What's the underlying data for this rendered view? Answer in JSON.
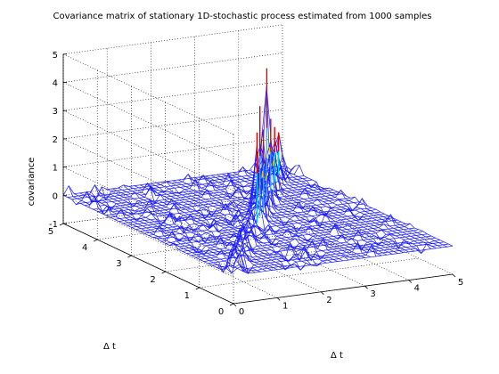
{
  "chart_data": {
    "type": "surface",
    "title": "Covariance matrix of stationary 1D-stochastic process estimated from 1000 samples",
    "xlabel": "Δ t",
    "ylabel": "Δ t",
    "zlabel": "covariance",
    "xlim": [
      0,
      5
    ],
    "ylim": [
      0,
      5
    ],
    "zlim": [
      -1,
      5
    ],
    "xticks": [
      "0",
      "1",
      "2",
      "3",
      "4",
      "5"
    ],
    "yticks": [
      "0",
      "1",
      "2",
      "3",
      "4",
      "5"
    ],
    "zticks": [
      "-1",
      "0",
      "1",
      "2",
      "3",
      "4",
      "5"
    ],
    "grid": true,
    "mesh_color": "#1a1aff",
    "diagonal_peaks": [
      {
        "t": 0.15,
        "z": 1.3
      },
      {
        "t": 0.6,
        "z": 1.1
      },
      {
        "t": 1.0,
        "z": 0.9
      },
      {
        "t": 1.45,
        "z": 1.0
      },
      {
        "t": 1.9,
        "z": 1.1
      },
      {
        "t": 2.4,
        "z": 3.2
      },
      {
        "t": 2.7,
        "z": 3.9
      },
      {
        "t": 3.05,
        "z": 2.8
      },
      {
        "t": 3.4,
        "z": 4.7
      },
      {
        "t": 3.8,
        "z": 2.6
      },
      {
        "t": 4.2,
        "z": 2.0
      },
      {
        "t": 4.6,
        "z": 1.5
      }
    ],
    "background_noise_amplitude": 0.3
  }
}
